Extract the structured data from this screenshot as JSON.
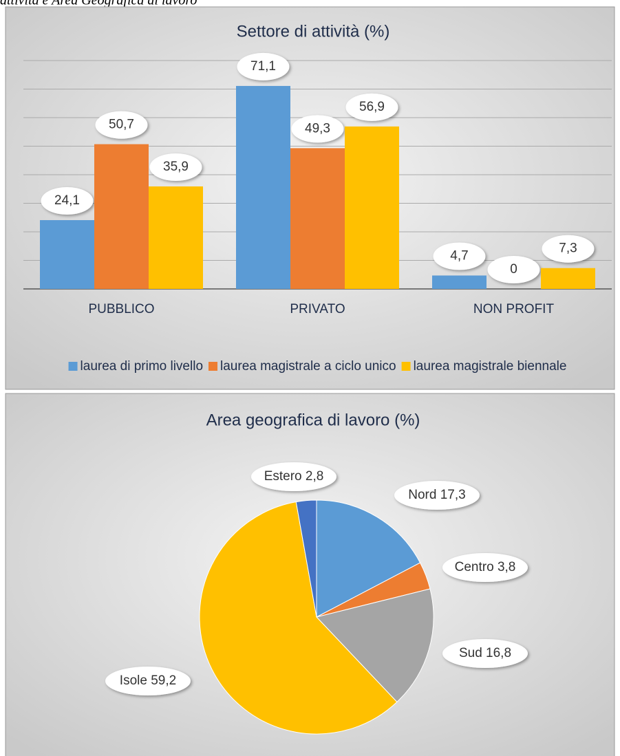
{
  "caption": "attività e Area Geografica di lavoro",
  "chart_data": [
    {
      "type": "bar",
      "title": "Settore di attività (%)",
      "categories": [
        "PUBBLICO",
        "PRIVATO",
        "NON PROFIT"
      ],
      "series": [
        {
          "name": "laurea di primo livello",
          "color": "#5b9bd5",
          "values": [
            24.1,
            71.1,
            4.7
          ],
          "value_labels": [
            "24,1",
            "71,1",
            "4,7"
          ]
        },
        {
          "name": "laurea magistrale a ciclo unico",
          "color": "#ed7d31",
          "values": [
            50.7,
            49.3,
            0
          ],
          "value_labels": [
            "50,7",
            "49,3",
            "0"
          ]
        },
        {
          "name": "laurea magistrale biennale",
          "color": "#ffc000",
          "values": [
            35.9,
            56.9,
            7.3
          ],
          "value_labels": [
            "35,9",
            "56,9",
            "7,3"
          ]
        }
      ],
      "ylim": [
        0,
        80
      ],
      "yticks": [
        0,
        10,
        20,
        30,
        40,
        50,
        60,
        70,
        80
      ],
      "grid": true,
      "legend": "bottom"
    },
    {
      "type": "pie",
      "title": "Area geografica di lavoro (%)",
      "categories": [
        "Nord",
        "Centro",
        "Sud",
        "Isole",
        "Estero"
      ],
      "values": [
        17.3,
        3.8,
        16.8,
        59.2,
        2.8
      ],
      "value_labels": [
        "17,3",
        "3,8",
        "16,8",
        "59,2",
        "2,8"
      ],
      "colors": [
        "#5b9bd5",
        "#ed7d31",
        "#a5a5a5",
        "#ffc000",
        "#4472c4"
      ]
    }
  ]
}
